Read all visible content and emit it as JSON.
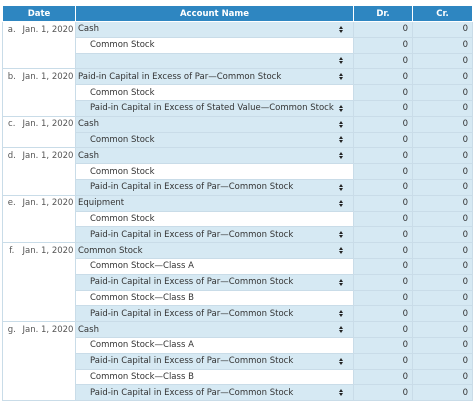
{
  "header": {
    "date": "Date",
    "account_name": "Account Name",
    "dr": "Dr.",
    "cr": "Cr."
  },
  "colors": {
    "header_bg": "#2e86c1",
    "cell_blue": "#d6e9f3",
    "border": "#c9dce8"
  },
  "rows": [
    {
      "letter": "a.",
      "date": "Jan. 1, 2020",
      "account": "Cash",
      "indent": false,
      "dropdown": true,
      "dr": "0",
      "cr": "0"
    },
    {
      "letter": "",
      "date": "",
      "account": "Common Stock",
      "indent": true,
      "dropdown": false,
      "dr": "0",
      "cr": "0"
    },
    {
      "letter": "",
      "date": "",
      "account": "",
      "indent": true,
      "dropdown": true,
      "dr": "0",
      "cr": "0"
    },
    {
      "letter": "b.",
      "date": "Jan. 1, 2020",
      "account": "Paid-in Capital in Excess of Par—Common Stock",
      "indent": false,
      "dropdown": true,
      "dr": "0",
      "cr": "0"
    },
    {
      "letter": "",
      "date": "",
      "account": "Common Stock",
      "indent": true,
      "dropdown": false,
      "dr": "0",
      "cr": "0"
    },
    {
      "letter": "",
      "date": "",
      "account": "Paid-in Capital in Excess of Stated Value—Common Stock",
      "indent": true,
      "dropdown": true,
      "dr": "0",
      "cr": "0"
    },
    {
      "letter": "c.",
      "date": "Jan. 1, 2020",
      "account": "Cash",
      "indent": false,
      "dropdown": true,
      "dr": "0",
      "cr": "0"
    },
    {
      "letter": "",
      "date": "",
      "account": "Common Stock",
      "indent": true,
      "dropdown": true,
      "dr": "0",
      "cr": "0"
    },
    {
      "letter": "d.",
      "date": "Jan. 1, 2020",
      "account": "Cash",
      "indent": false,
      "dropdown": true,
      "dr": "0",
      "cr": "0"
    },
    {
      "letter": "",
      "date": "",
      "account": "Common Stock",
      "indent": true,
      "dropdown": false,
      "dr": "0",
      "cr": "0"
    },
    {
      "letter": "",
      "date": "",
      "account": "Paid-in Capital in Excess of Par—Common Stock",
      "indent": true,
      "dropdown": true,
      "dr": "0",
      "cr": "0"
    },
    {
      "letter": "e.",
      "date": "Jan. 1, 2020",
      "account": "Equipment",
      "indent": false,
      "dropdown": true,
      "dr": "0",
      "cr": "0"
    },
    {
      "letter": "",
      "date": "",
      "account": "Common Stock",
      "indent": true,
      "dropdown": false,
      "dr": "0",
      "cr": "0"
    },
    {
      "letter": "",
      "date": "",
      "account": "Paid-in Capital in Excess of Par—Common Stock",
      "indent": true,
      "dropdown": true,
      "dr": "0",
      "cr": "0"
    },
    {
      "letter": "f.",
      "date": "Jan. 1, 2020",
      "account": "Common Stock",
      "indent": false,
      "dropdown": true,
      "dr": "0",
      "cr": "0"
    },
    {
      "letter": "",
      "date": "",
      "account": "Common Stock—Class A",
      "indent": true,
      "dropdown": false,
      "dr": "0",
      "cr": "0"
    },
    {
      "letter": "",
      "date": "",
      "account": "Paid-in Capital in Excess of Par—Common Stock",
      "indent": true,
      "dropdown": true,
      "dr": "0",
      "cr": "0"
    },
    {
      "letter": "",
      "date": "",
      "account": "Common Stock—Class B",
      "indent": true,
      "dropdown": false,
      "dr": "0",
      "cr": "0"
    },
    {
      "letter": "",
      "date": "",
      "account": "Paid-in Capital in Excess of Par—Common Stock",
      "indent": true,
      "dropdown": true,
      "dr": "0",
      "cr": "0"
    },
    {
      "letter": "g.",
      "date": "Jan. 1, 2020",
      "account": "Cash",
      "indent": false,
      "dropdown": true,
      "dr": "0",
      "cr": "0"
    },
    {
      "letter": "",
      "date": "",
      "account": "Common Stock—Class A",
      "indent": true,
      "dropdown": false,
      "dr": "0",
      "cr": "0"
    },
    {
      "letter": "",
      "date": "",
      "account": "Paid-in Capital in Excess of Par—Common Stock",
      "indent": true,
      "dropdown": true,
      "dr": "0",
      "cr": "0"
    },
    {
      "letter": "",
      "date": "",
      "account": "Common Stock—Class B",
      "indent": true,
      "dropdown": false,
      "dr": "0",
      "cr": "0"
    },
    {
      "letter": "",
      "date": "",
      "account": "Paid-in Capital in Excess of Par—Common Stock",
      "indent": true,
      "dropdown": true,
      "dr": "0",
      "cr": "0"
    }
  ]
}
